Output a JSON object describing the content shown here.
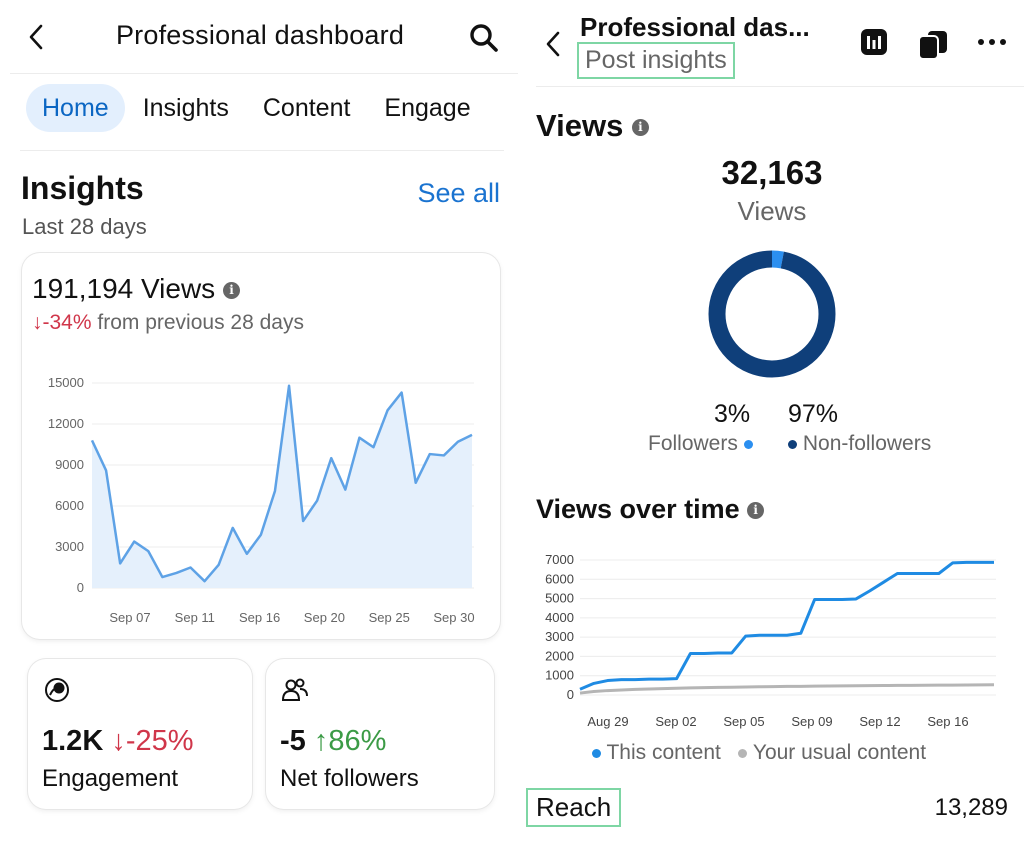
{
  "dashboard": {
    "title": "Professional dashboard",
    "tabs": [
      "Home",
      "Insights",
      "Content",
      "Engage"
    ],
    "active_tab": "Home",
    "insights_heading": "Insights",
    "see_all": "See all",
    "period": "Last 28 days",
    "views_card": {
      "total": "191,194 Views",
      "change": "↓-34%",
      "change_suffix": " from previous 28 days"
    },
    "engagement": {
      "value": "1.2K",
      "change": "↓-25%",
      "label": "Engagement"
    },
    "net_followers": {
      "value": "-5",
      "change": "↑86%",
      "label": "Net followers"
    }
  },
  "post_insights": {
    "title": "Professional das...",
    "subtitle": "Post insights",
    "views_heading": "Views",
    "views_total": "32,163",
    "views_label": "Views",
    "followers_pct": "3%",
    "nonfollowers_pct": "97%",
    "followers_label": "Followers",
    "nonfollowers_label": "Non-followers",
    "views_over_time_heading": "Views over time",
    "legend": [
      "This content",
      "Your usual content"
    ],
    "reach_label": "Reach",
    "reach_value": "13,289"
  },
  "colors": {
    "accent_blue": "#1a73d0",
    "line_blue": "#5ea2e6",
    "area_fill": "#e5f0fc",
    "donut_dark": "#0f3f7a",
    "donut_light": "#2b8ff0",
    "negative": "#d0364a",
    "positive": "#3c9b46",
    "usual_gray": "#b5b5b5"
  },
  "chart_data": [
    {
      "type": "area",
      "title": "",
      "x_ticks": [
        "Sep 07",
        "Sep 11",
        "Sep 16",
        "Sep 20",
        "Sep 25",
        "Sep 30"
      ],
      "y_ticks": [
        0,
        3000,
        6000,
        9000,
        12000,
        15000
      ],
      "ylim": [
        0,
        15000
      ],
      "grid": true,
      "series": [
        {
          "values": [
            10800,
            8600,
            1800,
            3400,
            2700,
            800,
            1100,
            1500,
            500,
            1700,
            4400,
            2500,
            3900,
            7100,
            14800,
            4900,
            6400,
            9500,
            7200,
            11000,
            10300,
            13000,
            14300,
            7700,
            9800,
            9700,
            10700,
            11200
          ]
        }
      ]
    },
    {
      "type": "pie",
      "title": "",
      "labels": [
        "Followers",
        "Non-followers"
      ],
      "values": [
        3,
        97
      ]
    },
    {
      "type": "line",
      "title": "",
      "x_ticks": [
        "Aug 29",
        "Sep 02",
        "Sep 05",
        "Sep 09",
        "Sep 12",
        "Sep 16"
      ],
      "y_ticks": [
        0,
        1000,
        2000,
        3000,
        4000,
        5000,
        6000,
        7000
      ],
      "ylim": [
        0,
        7000
      ],
      "grid": true,
      "legend_position": "bottom",
      "series": [
        {
          "name": "This content",
          "values": [
            300,
            600,
            750,
            800,
            800,
            820,
            820,
            850,
            2150,
            2150,
            2180,
            2180,
            3050,
            3100,
            3100,
            3100,
            3200,
            4950,
            4950,
            4950,
            4980,
            5400,
            5850,
            6300,
            6300,
            6300,
            6300,
            6850,
            6880,
            6880,
            6880
          ]
        },
        {
          "name": "Your usual content",
          "values": [
            100,
            180,
            230,
            260,
            290,
            310,
            330,
            350,
            370,
            380,
            395,
            405,
            415,
            425,
            435,
            445,
            450,
            458,
            465,
            472,
            478,
            484,
            490,
            496,
            500,
            505,
            510,
            515,
            520,
            525,
            530
          ]
        }
      ]
    }
  ]
}
